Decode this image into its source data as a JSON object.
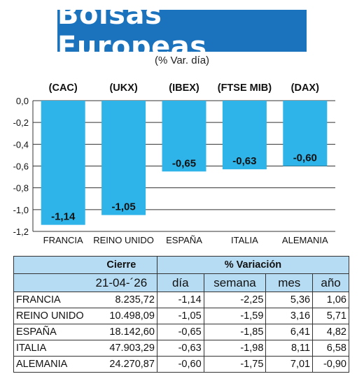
{
  "header": {
    "title": "Bolsas Europeas",
    "subtitle": "(% Var. día)"
  },
  "chart_data": {
    "type": "bar",
    "index_labels": [
      "(CAC)",
      "(UKX)",
      "(IBEX)",
      "(FTSE MIB)",
      "(DAX)"
    ],
    "categories": [
      "FRANCIA",
      "REINO UNIDO",
      "ESPAÑA",
      "ITALIA",
      "ALEMANIA"
    ],
    "values": [
      -1.14,
      -1.05,
      -0.65,
      -0.63,
      -0.6
    ],
    "value_labels": [
      "-1,14",
      "-1,05",
      "-0,65",
      "-0,63",
      "-0,60"
    ],
    "y_ticks": [
      0,
      -0.2,
      -0.4,
      -0.6,
      -0.8,
      -1.0,
      -1.2
    ],
    "y_tick_labels": [
      "0,0",
      "-0,2",
      "-0,4",
      "-0,6",
      "-0,8",
      "-1,0",
      "-1,2"
    ],
    "ylim": [
      -1.2,
      0
    ],
    "grid": true,
    "bar_color": "#2fb4ea"
  },
  "table": {
    "group_headers": {
      "cierre": "Cierre",
      "variacion": "% Variación"
    },
    "columns": {
      "fecha": "21-04-´26",
      "dia": "día",
      "semana": "semana",
      "mes": "mes",
      "anio": "año"
    },
    "rows": [
      {
        "pais": "FRANCIA",
        "cierre": "8.235,72",
        "dia": "-1,14",
        "semana": "-2,25",
        "mes": "5,36",
        "anio": "1,06"
      },
      {
        "pais": "REINO UNIDO",
        "cierre": "10.498,09",
        "dia": "-1,05",
        "semana": "-1,59",
        "mes": "3,16",
        "anio": "5,71"
      },
      {
        "pais": "ESPAÑA",
        "cierre": "18.142,60",
        "dia": "-0,65",
        "semana": "-1,85",
        "mes": "6,41",
        "anio": "4,82"
      },
      {
        "pais": "ITALIA",
        "cierre": "47.903,29",
        "dia": "-0,63",
        "semana": "-1,98",
        "mes": "8,11",
        "anio": "6,58"
      },
      {
        "pais": "ALEMANIA",
        "cierre": "24.270,87",
        "dia": "-0,60",
        "semana": "-1,75",
        "mes": "7,01",
        "anio": "-0,90"
      }
    ]
  }
}
